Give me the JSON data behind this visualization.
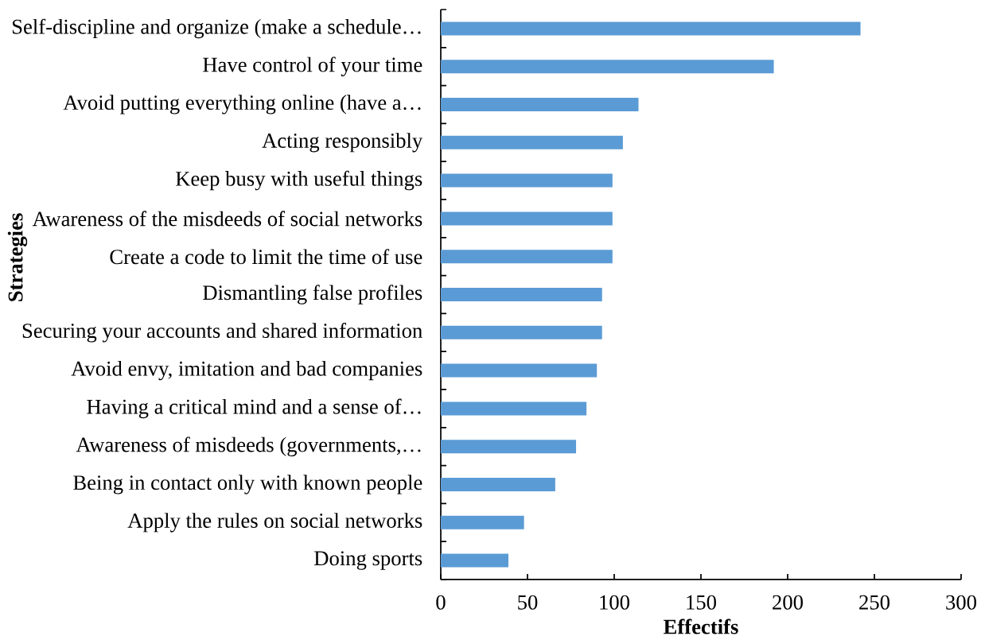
{
  "chart_data": {
    "type": "bar",
    "orientation": "horizontal",
    "xlabel": "Effectifs",
    "ylabel": "Strategies",
    "categories": [
      "Self-discipline and organize (make a schedule…",
      "Have control of your time",
      "Avoid putting everything online (have a…",
      "Acting responsibly",
      "Keep busy with useful things",
      "Awareness of the misdeeds of social networks",
      "Create a code to limit the time of use",
      "Dismantling false profiles",
      "Securing your accounts and shared information",
      "Avoid envy, imitation and bad companies",
      "Having a critical mind and a sense of…",
      "Awareness of misdeeds (governments,…",
      "Being in contact only with known people",
      "Apply the rules on social networks",
      "Doing sports"
    ],
    "values": [
      242,
      192,
      114,
      105,
      99,
      99,
      99,
      93,
      93,
      90,
      84,
      78,
      66,
      48,
      39
    ],
    "color": "#5b9bd5",
    "xlim": [
      0,
      300
    ],
    "xticks": [
      0,
      50,
      100,
      150,
      200,
      250,
      300
    ]
  }
}
